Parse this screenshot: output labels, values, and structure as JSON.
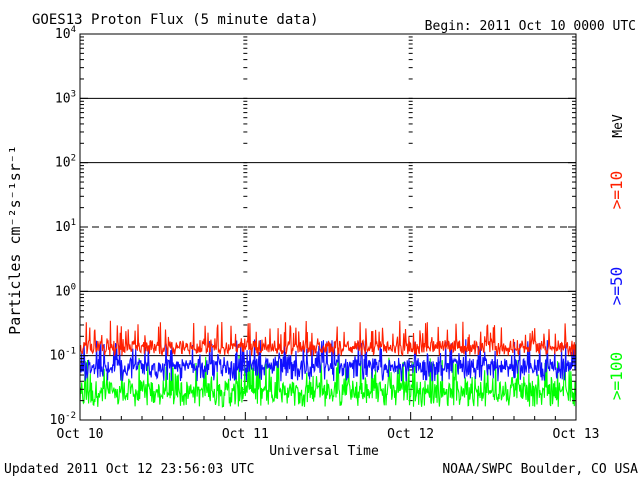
{
  "chart_data": {
    "type": "line",
    "title": "GOES13 Proton Flux (5 minute data)",
    "begin": "Begin: 2011 Oct 10 0000 UTC",
    "xlabel": "Universal Time",
    "ylabel": "Particles cm⁻²s⁻¹sr⁻¹",
    "y_scale": "log",
    "ylim": [
      0.01,
      10000
    ],
    "y_ticks": [
      {
        "base": "10",
        "exp": "4",
        "value": 10000
      },
      {
        "base": "10",
        "exp": "3",
        "value": 1000
      },
      {
        "base": "10",
        "exp": "2",
        "value": 100
      },
      {
        "base": "10",
        "exp": "1",
        "value": 10
      },
      {
        "base": "10",
        "exp": "0",
        "value": 1
      },
      {
        "base": "10",
        "exp": "-1",
        "value": 0.1
      },
      {
        "base": "10",
        "exp": "-2",
        "value": 0.01
      }
    ],
    "x_ticks": [
      "Oct 10",
      "Oct 11",
      "Oct 12",
      "Oct 13"
    ],
    "xlim": [
      "2011-10-10 00:00",
      "2011-10-13 00:00"
    ],
    "reference_lines": [
      {
        "value": 1000,
        "style": "solid"
      },
      {
        "value": 100,
        "style": "solid"
      },
      {
        "value": 10,
        "style": "dashed"
      },
      {
        "value": 1,
        "style": "solid"
      },
      {
        "value": 0.1,
        "style": "solid"
      }
    ],
    "series": [
      {
        "name": ">=10",
        "color": "#ff2000",
        "typical": 0.14,
        "range": [
          0.1,
          0.35
        ]
      },
      {
        "name": ">=50",
        "color": "#1010ff",
        "typical": 0.07,
        "range": [
          0.04,
          0.18
        ]
      },
      {
        "name": ">=100",
        "color": "#00ff00",
        "typical": 0.03,
        "range": [
          0.016,
          0.1
        ]
      }
    ],
    "legend": {
      "unit": "MeV",
      "placement": "right"
    },
    "grid": "vertical tick rows at day boundaries",
    "updated": "Updated 2011 Oct 12 23:56:03 UTC",
    "source": "NOAA/SWPC Boulder, CO USA"
  }
}
